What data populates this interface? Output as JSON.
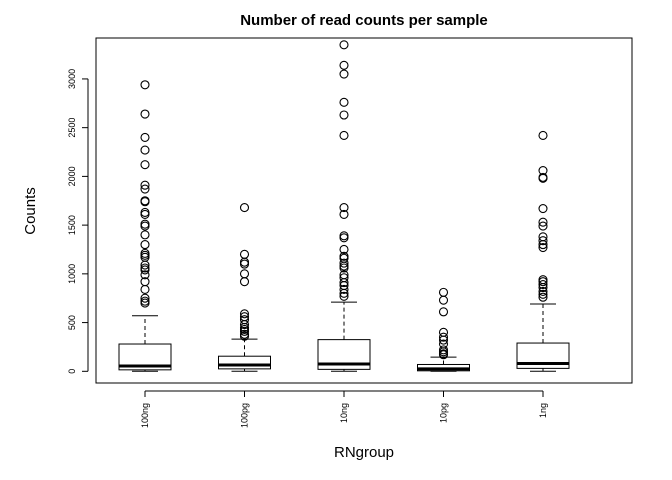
{
  "chart_data": {
    "type": "boxplot",
    "title": "Number of read counts per sample",
    "xlabel": "RNgroup",
    "ylabel": "Counts",
    "ylim": [
      -120,
      3420
    ],
    "yticks": [
      0,
      500,
      1000,
      1500,
      2000,
      2500,
      3000
    ],
    "ytick_labels": [
      "0",
      "500",
      "1000",
      "1500",
      "2000",
      "2500",
      "3000"
    ],
    "categories": [
      "100ng",
      "100pg",
      "10ng",
      "10pg",
      "1ng"
    ],
    "boxes": [
      {
        "category": "100ng",
        "whisker_low": 0,
        "q1": 15,
        "median": 55,
        "q3": 280,
        "whisker_high": 570,
        "outliers": [
          2940,
          2640,
          2400,
          2270,
          2120,
          1910,
          1870,
          1750,
          1740,
          1630,
          1610,
          1510,
          1490,
          1400,
          1300,
          1210,
          1190,
          1170,
          1090,
          1060,
          1040,
          990,
          920,
          840,
          750,
          720,
          700
        ]
      },
      {
        "category": "100pg",
        "whisker_low": 0,
        "q1": 25,
        "median": 65,
        "q3": 155,
        "whisker_high": 330,
        "outliers": [
          1680,
          1200,
          1120,
          1100,
          1000,
          920,
          590,
          560,
          530,
          480,
          450,
          430,
          410,
          380,
          360
        ]
      },
      {
        "category": "10ng",
        "whisker_low": 0,
        "q1": 20,
        "median": 75,
        "q3": 325,
        "whisker_high": 710,
        "outliers": [
          3350,
          3140,
          3050,
          2760,
          2630,
          2420,
          1680,
          1610,
          1390,
          1370,
          1250,
          1180,
          1160,
          1110,
          1080,
          1060,
          990,
          960,
          910,
          880,
          840,
          800,
          770
        ]
      },
      {
        "category": "10pg",
        "whisker_low": 0,
        "q1": 5,
        "median": 25,
        "q3": 70,
        "whisker_high": 145,
        "outliers": [
          810,
          730,
          610,
          400,
          350,
          320,
          280,
          220,
          200,
          180,
          170
        ]
      },
      {
        "category": "1ng",
        "whisker_low": 0,
        "q1": 30,
        "median": 80,
        "q3": 290,
        "whisker_high": 690,
        "outliers": [
          2420,
          2060,
          1990,
          1980,
          1670,
          1530,
          1490,
          1380,
          1340,
          1300,
          1270,
          940,
          920,
          890,
          860,
          820,
          790,
          760
        ]
      }
    ],
    "grid": false,
    "legend": "none"
  }
}
